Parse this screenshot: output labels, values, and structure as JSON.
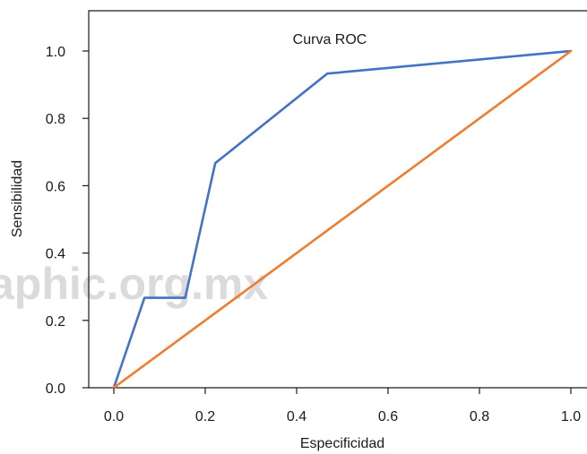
{
  "watermark": "aphic.org.mx",
  "chart_data": {
    "type": "line",
    "title": "Curva ROC",
    "xlabel": "Especificidad",
    "ylabel": "Sensibilidad",
    "xlim": [
      0,
      1
    ],
    "ylim": [
      0,
      1.1
    ],
    "x_ticks": [
      0.0,
      0.2,
      0.4,
      0.6,
      0.8,
      1.0
    ],
    "y_ticks": [
      0.0,
      0.2,
      0.4,
      0.6,
      0.8,
      1.0
    ],
    "x_tick_labels": [
      "0.0",
      "0.2",
      "0.4",
      "0.6",
      "0.8",
      "1.0"
    ],
    "y_tick_labels": [
      "0.0",
      "0.2",
      "0.4",
      "0.6",
      "0.8",
      "1.0"
    ],
    "grid": false,
    "series": [
      {
        "color": "#4472c4",
        "points": [
          [
            0.0,
            0.0
          ],
          [
            0.067,
            0.267
          ],
          [
            0.156,
            0.267
          ],
          [
            0.222,
            0.667
          ],
          [
            0.467,
            0.933
          ],
          [
            1.0,
            1.0
          ]
        ]
      },
      {
        "color": "#ed7d31",
        "points": [
          [
            0.0,
            0.0
          ],
          [
            1.0,
            1.0
          ]
        ]
      }
    ]
  }
}
